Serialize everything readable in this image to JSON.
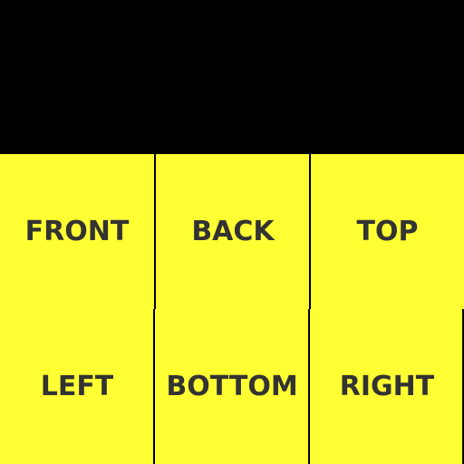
{
  "colors": {
    "background": "#000000",
    "tile": "#ffff33",
    "text": "#333333"
  },
  "tiles": [
    {
      "label": "FRONT"
    },
    {
      "label": "BACK"
    },
    {
      "label": "TOP"
    },
    {
      "label": "LEFT"
    },
    {
      "label": "BOTTOM"
    },
    {
      "label": "RIGHT"
    }
  ]
}
